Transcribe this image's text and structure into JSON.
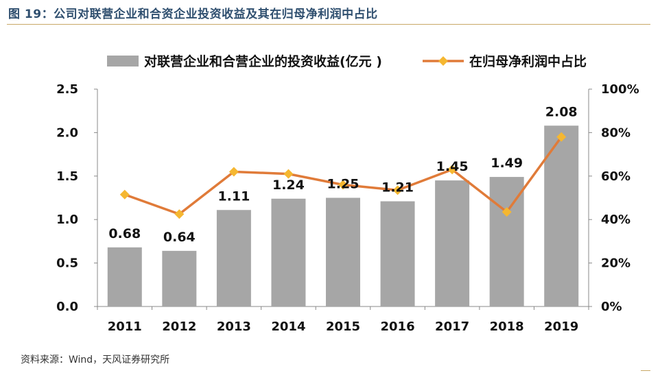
{
  "header": {
    "title": "图 19：公司对联营企业和合资企业投资收益及其在归母净利润中占比"
  },
  "footer": {
    "source": "资料来源：Wind，天风证券研究所"
  },
  "chart_data": {
    "type": "bar",
    "title": "",
    "categories": [
      "2011",
      "2012",
      "2013",
      "2014",
      "2015",
      "2016",
      "2017",
      "2018",
      "2019"
    ],
    "series": [
      {
        "name": "对联营企业和合营企业的投资收益(亿元 )",
        "type": "bar",
        "axis": "left",
        "color": "#a6a6a6",
        "values": [
          0.68,
          0.64,
          1.11,
          1.24,
          1.25,
          1.21,
          1.45,
          1.49,
          2.08
        ],
        "labels": [
          "0.68",
          "0.64",
          "1.11",
          "1.24",
          "1.25",
          "1.21",
          "1.45",
          "1.49",
          "2.08"
        ]
      },
      {
        "name": "在归母净利润中占比",
        "type": "line",
        "axis": "right",
        "color": "#e07b39",
        "marker_color": "#f5b731",
        "values": [
          51.5,
          42.5,
          62.0,
          61.0,
          56.0,
          53.5,
          63.0,
          43.5,
          78.0
        ]
      }
    ],
    "y_left": {
      "min": 0,
      "max": 2.5,
      "ticks": [
        0.0,
        0.5,
        1.0,
        1.5,
        2.0,
        2.5
      ],
      "tick_labels": [
        "0.0",
        "0.5",
        "1.0",
        "1.5",
        "2.0",
        "2.5"
      ]
    },
    "y_right": {
      "min": 0,
      "max": 100,
      "ticks": [
        0,
        20,
        40,
        60,
        80,
        100
      ],
      "tick_labels": [
        "0%",
        "20%",
        "40%",
        "60%",
        "80%",
        "100%"
      ]
    },
    "legend_position": "top",
    "grid": false
  }
}
